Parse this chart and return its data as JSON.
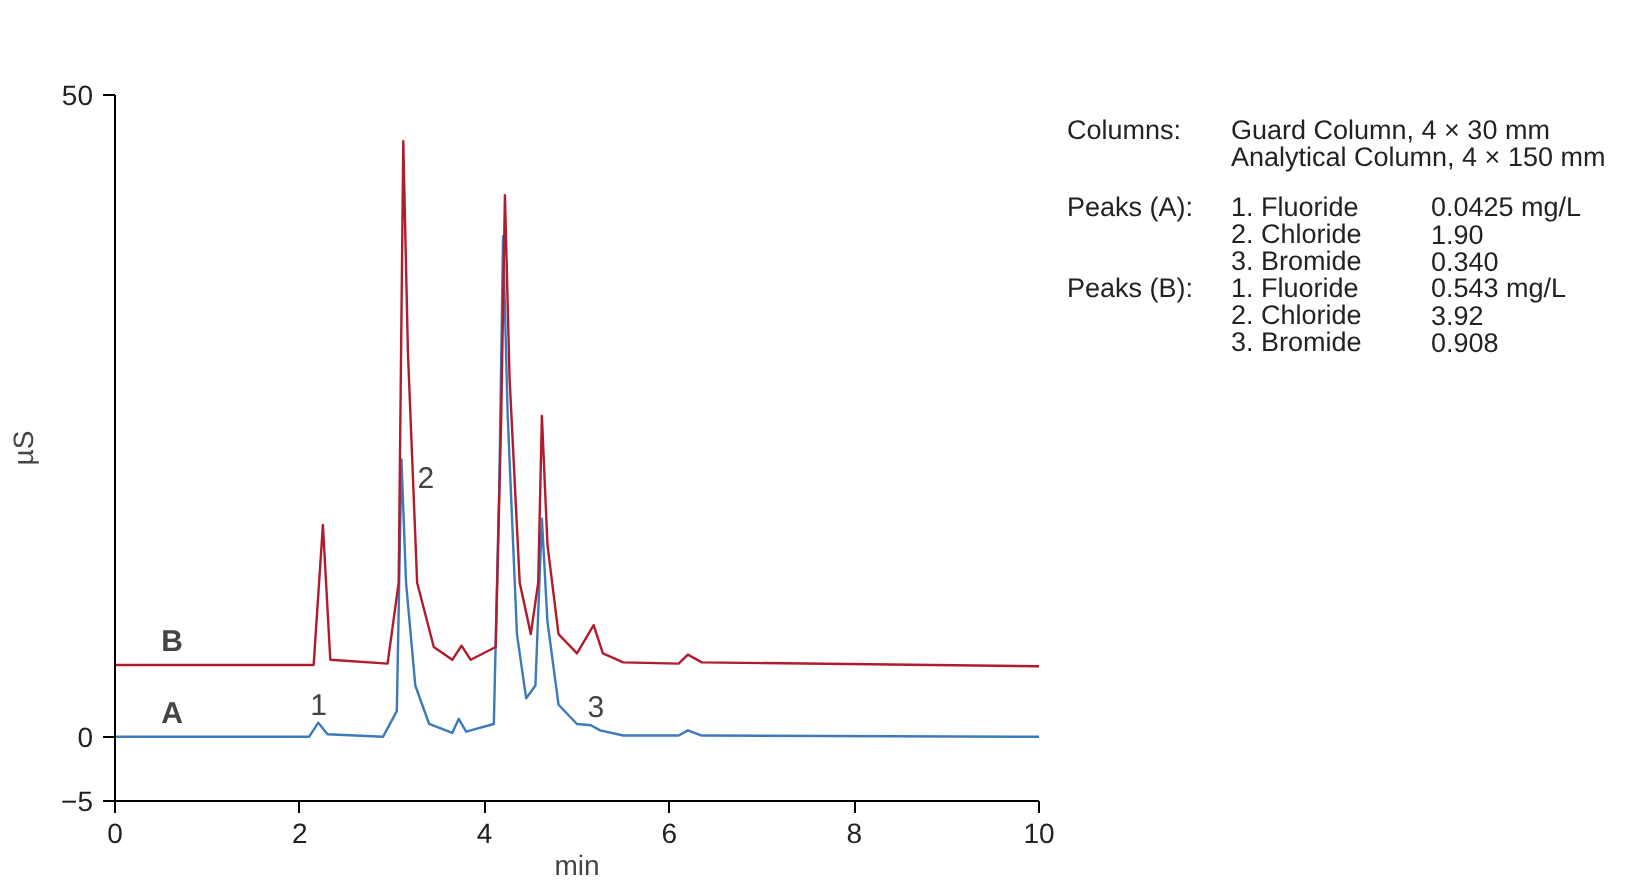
{
  "chart_data": {
    "type": "line",
    "xlabel": "min",
    "ylabel": "µS",
    "xlim": [
      0,
      10
    ],
    "ylim": [
      -5,
      50
    ],
    "xticks": [
      0,
      2,
      4,
      6,
      8,
      10
    ],
    "yticks": [
      -5,
      0,
      50
    ],
    "grid": false,
    "marker": "none",
    "line_style": "solid",
    "series": [
      {
        "name": "A",
        "color": "#3d7ab8",
        "x": [
          0,
          2.1,
          2.2,
          2.3,
          2.9,
          3.05,
          3.1,
          3.15,
          3.25,
          3.4,
          3.65,
          3.72,
          3.8,
          4.1,
          4.16,
          4.2,
          4.25,
          4.35,
          4.45,
          4.55,
          4.62,
          4.68,
          4.8,
          5.0,
          5.15,
          5.25,
          5.5,
          6.1,
          6.2,
          6.35,
          10
        ],
        "values": [
          0,
          0,
          1.1,
          0.2,
          0,
          2,
          21.6,
          12,
          4,
          1,
          0.3,
          1.4,
          0.4,
          1,
          20,
          39,
          25,
          8,
          3,
          4,
          17,
          9,
          2.5,
          1,
          0.9,
          0.5,
          0.1,
          0.1,
          0.5,
          0.1,
          0
        ]
      },
      {
        "name": "B",
        "color": "#b01c2e",
        "x": [
          0,
          2.15,
          2.25,
          2.33,
          2.95,
          3.07,
          3.12,
          3.17,
          3.27,
          3.45,
          3.65,
          3.75,
          3.85,
          4.12,
          4.18,
          4.22,
          4.27,
          4.38,
          4.5,
          4.58,
          4.62,
          4.68,
          4.8,
          5.0,
          5.18,
          5.28,
          5.5,
          6.1,
          6.2,
          6.35,
          10
        ],
        "values": [
          5.6,
          5.6,
          16.5,
          6,
          5.7,
          12,
          46.4,
          30,
          12,
          7,
          6,
          7.1,
          6,
          7,
          25,
          42.2,
          28,
          12,
          8,
          12,
          25,
          15,
          8,
          6.5,
          8.7,
          6.5,
          5.8,
          5.7,
          6.4,
          5.8,
          5.5
        ]
      }
    ],
    "annotations": [
      {
        "text": "1",
        "x": 2.2,
        "y": 1.1
      },
      {
        "text": "2",
        "x": 3.1,
        "y": 21.6
      },
      {
        "text": "3",
        "x": 5.2,
        "y": 0.9
      },
      "Columns:\tGuard Column, 4 × 30 mm",
      "\tAnalytical Column, 4 × 150 mm",
      "Peaks (A):\t1. Fluoride\t0.0425 mg/L",
      "\t2. Chloride\t1.90",
      "\t3. Bromide\t0.340",
      "Peaks (B):\t1. Fluoride\t0.543 mg/L",
      "\t2. Chloride\t3.92",
      "\t3. Bromide\t0.908"
    ]
  }
}
